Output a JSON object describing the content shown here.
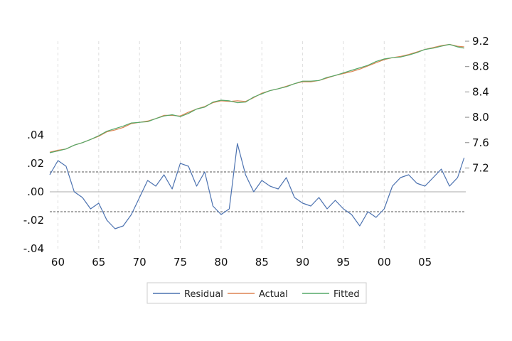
{
  "chart_data": {
    "type": "line",
    "title": "",
    "xlabel": "",
    "grid": "vertical-dashed",
    "legend_placement": "bottom-center",
    "x_ticks": [
      "60",
      "65",
      "70",
      "75",
      "80",
      "85",
      "90",
      "95",
      "00",
      "05"
    ],
    "x_range": [
      1959,
      2010
    ],
    "left_axis": {
      "ticks": [
        ".04",
        ".02",
        ".00",
        "-.02",
        "-.04"
      ],
      "tick_values": [
        0.04,
        0.02,
        0.0,
        -0.02,
        -0.04
      ],
      "range": [
        -0.04,
        0.04
      ],
      "reference_lines": [
        0.0,
        0.014,
        -0.014
      ]
    },
    "right_axis": {
      "ticks": [
        "9.2",
        "8.8",
        "8.4",
        "8.0",
        "7.6",
        "7.2"
      ],
      "tick_values": [
        9.2,
        8.8,
        8.4,
        8.0,
        7.6,
        7.2
      ],
      "range": [
        6.6,
        9.2
      ]
    },
    "series": [
      {
        "name": "Residual",
        "axis": "left",
        "color": "#4c72b0",
        "x": [
          1959,
          1960,
          1961,
          1962,
          1963,
          1964,
          1965,
          1966,
          1967,
          1968,
          1969,
          1970,
          1971,
          1972,
          1973,
          1974,
          1975,
          1976,
          1977,
          1978,
          1979,
          1980,
          1981,
          1982,
          1983,
          1984,
          1985,
          1986,
          1987,
          1988,
          1989,
          1990,
          1991,
          1992,
          1993,
          1994,
          1995,
          1996,
          1997,
          1998,
          1999,
          2000,
          2001,
          2002,
          2003,
          2004,
          2005,
          2006,
          2007,
          2008,
          2009,
          2009.8
        ],
        "y": [
          0.012,
          0.022,
          0.018,
          0.0,
          -0.004,
          -0.012,
          -0.008,
          -0.02,
          -0.026,
          -0.024,
          -0.016,
          -0.004,
          0.008,
          0.004,
          0.012,
          0.002,
          0.02,
          0.018,
          0.004,
          0.014,
          -0.01,
          -0.016,
          -0.012,
          0.034,
          0.012,
          0.0,
          0.008,
          0.004,
          0.002,
          0.01,
          -0.004,
          -0.008,
          -0.01,
          -0.004,
          -0.012,
          -0.006,
          -0.012,
          -0.016,
          -0.024,
          -0.014,
          -0.018,
          -0.012,
          0.004,
          0.01,
          0.012,
          0.006,
          0.004,
          0.01,
          0.016,
          0.004,
          0.01,
          0.024
        ]
      },
      {
        "name": "Actual",
        "axis": "right",
        "color": "#dd8452",
        "x": [
          1959,
          1960,
          1961,
          1962,
          1963,
          1964,
          1965,
          1966,
          1967,
          1968,
          1969,
          1970,
          1971,
          1972,
          1973,
          1974,
          1975,
          1976,
          1977,
          1978,
          1979,
          1980,
          1981,
          1982,
          1983,
          1984,
          1985,
          1986,
          1987,
          1988,
          1989,
          1990,
          1991,
          1992,
          1993,
          1994,
          1995,
          1996,
          1997,
          1998,
          1999,
          2000,
          2001,
          2002,
          2003,
          2004,
          2005,
          2006,
          2007,
          2008,
          2009,
          2009.8
        ],
        "y": [
          7.45,
          7.48,
          7.5,
          7.56,
          7.6,
          7.65,
          7.7,
          7.77,
          7.8,
          7.84,
          7.9,
          7.92,
          7.94,
          7.98,
          8.03,
          8.03,
          8.02,
          8.08,
          8.13,
          8.17,
          8.23,
          8.26,
          8.25,
          8.26,
          8.25,
          8.31,
          8.38,
          8.42,
          8.45,
          8.49,
          8.53,
          8.56,
          8.56,
          8.58,
          8.62,
          8.66,
          8.69,
          8.72,
          8.76,
          8.81,
          8.86,
          8.91,
          8.94,
          8.96,
          8.99,
          9.03,
          9.07,
          9.1,
          9.13,
          9.15,
          9.12,
          9.11
        ]
      },
      {
        "name": "Fitted",
        "axis": "right",
        "color": "#55a868",
        "x": [
          1959,
          1960,
          1961,
          1962,
          1963,
          1964,
          1965,
          1966,
          1967,
          1968,
          1969,
          1970,
          1971,
          1972,
          1973,
          1974,
          1975,
          1976,
          1977,
          1978,
          1979,
          1980,
          1981,
          1982,
          1983,
          1984,
          1985,
          1986,
          1987,
          1988,
          1989,
          1990,
          1991,
          1992,
          1993,
          1994,
          1995,
          1996,
          1997,
          1998,
          1999,
          2000,
          2001,
          2002,
          2003,
          2004,
          2005,
          2006,
          2007,
          2008,
          2009,
          2009.8
        ],
        "y": [
          7.44,
          7.47,
          7.5,
          7.56,
          7.6,
          7.65,
          7.71,
          7.78,
          7.82,
          7.86,
          7.91,
          7.92,
          7.93,
          7.98,
          8.02,
          8.04,
          8.01,
          8.06,
          8.13,
          8.16,
          8.24,
          8.27,
          8.26,
          8.23,
          8.24,
          8.32,
          8.37,
          8.42,
          8.45,
          8.48,
          8.53,
          8.57,
          8.57,
          8.58,
          8.63,
          8.66,
          8.7,
          8.74,
          8.78,
          8.82,
          8.88,
          8.92,
          8.94,
          8.95,
          8.98,
          9.02,
          9.07,
          9.09,
          9.12,
          9.15,
          9.11,
          9.09
        ]
      }
    ],
    "legend": [
      "Residual",
      "Actual",
      "Fitted"
    ]
  },
  "colors": {
    "grid": "#dddddd",
    "reference": "#555555",
    "zero": "#aaaaaa",
    "legend_border": "#cccccc"
  }
}
